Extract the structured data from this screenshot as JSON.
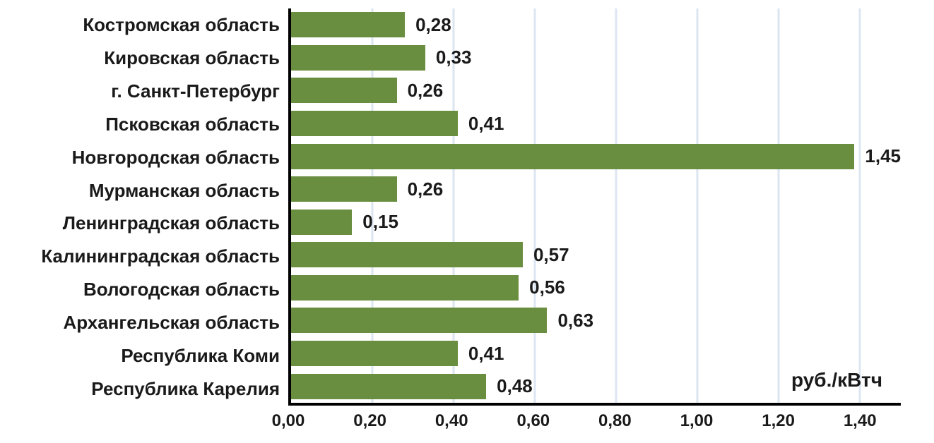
{
  "chart_data": {
    "type": "bar",
    "orientation": "horizontal",
    "title": "",
    "xlabel": "",
    "ylabel": "",
    "unit": "руб./кВтч",
    "xlim": [
      0,
      1.5
    ],
    "grid": true,
    "legend": false,
    "categories": [
      "Костромская область",
      "Кировская область",
      "г. Санкт-Петербург",
      "Псковская область",
      "Новгородская область",
      "Мурманская область",
      "Ленинградская область",
      "Калининградская область",
      "Вологодская область",
      "Архангельская область",
      "Республика Коми",
      "Республика Карелия"
    ],
    "values": [
      0.28,
      0.33,
      0.26,
      0.41,
      1.45,
      0.26,
      0.15,
      0.57,
      0.56,
      0.63,
      0.41,
      0.48
    ],
    "value_labels": [
      "0,28",
      "0,33",
      "0,26",
      "0,41",
      "1,45",
      "0,26",
      "0,15",
      "0,57",
      "0,56",
      "0,63",
      "0,41",
      "0,48"
    ],
    "x_ticks": [
      {
        "value": 0.0,
        "label": "0,00"
      },
      {
        "value": 0.2,
        "label": "0,20"
      },
      {
        "value": 0.4,
        "label": "0,40"
      },
      {
        "value": 0.6,
        "label": "0,60"
      },
      {
        "value": 0.8,
        "label": "0,80"
      },
      {
        "value": 1.0,
        "label": "1,00"
      },
      {
        "value": 1.2,
        "label": "1,20"
      },
      {
        "value": 1.4,
        "label": "1,40"
      }
    ],
    "colors": {
      "bar": "#6a8e3f",
      "gridline": "#dce6f2",
      "axis": "#000000",
      "text": "#1a1a1a",
      "background": "#ffffff"
    }
  }
}
